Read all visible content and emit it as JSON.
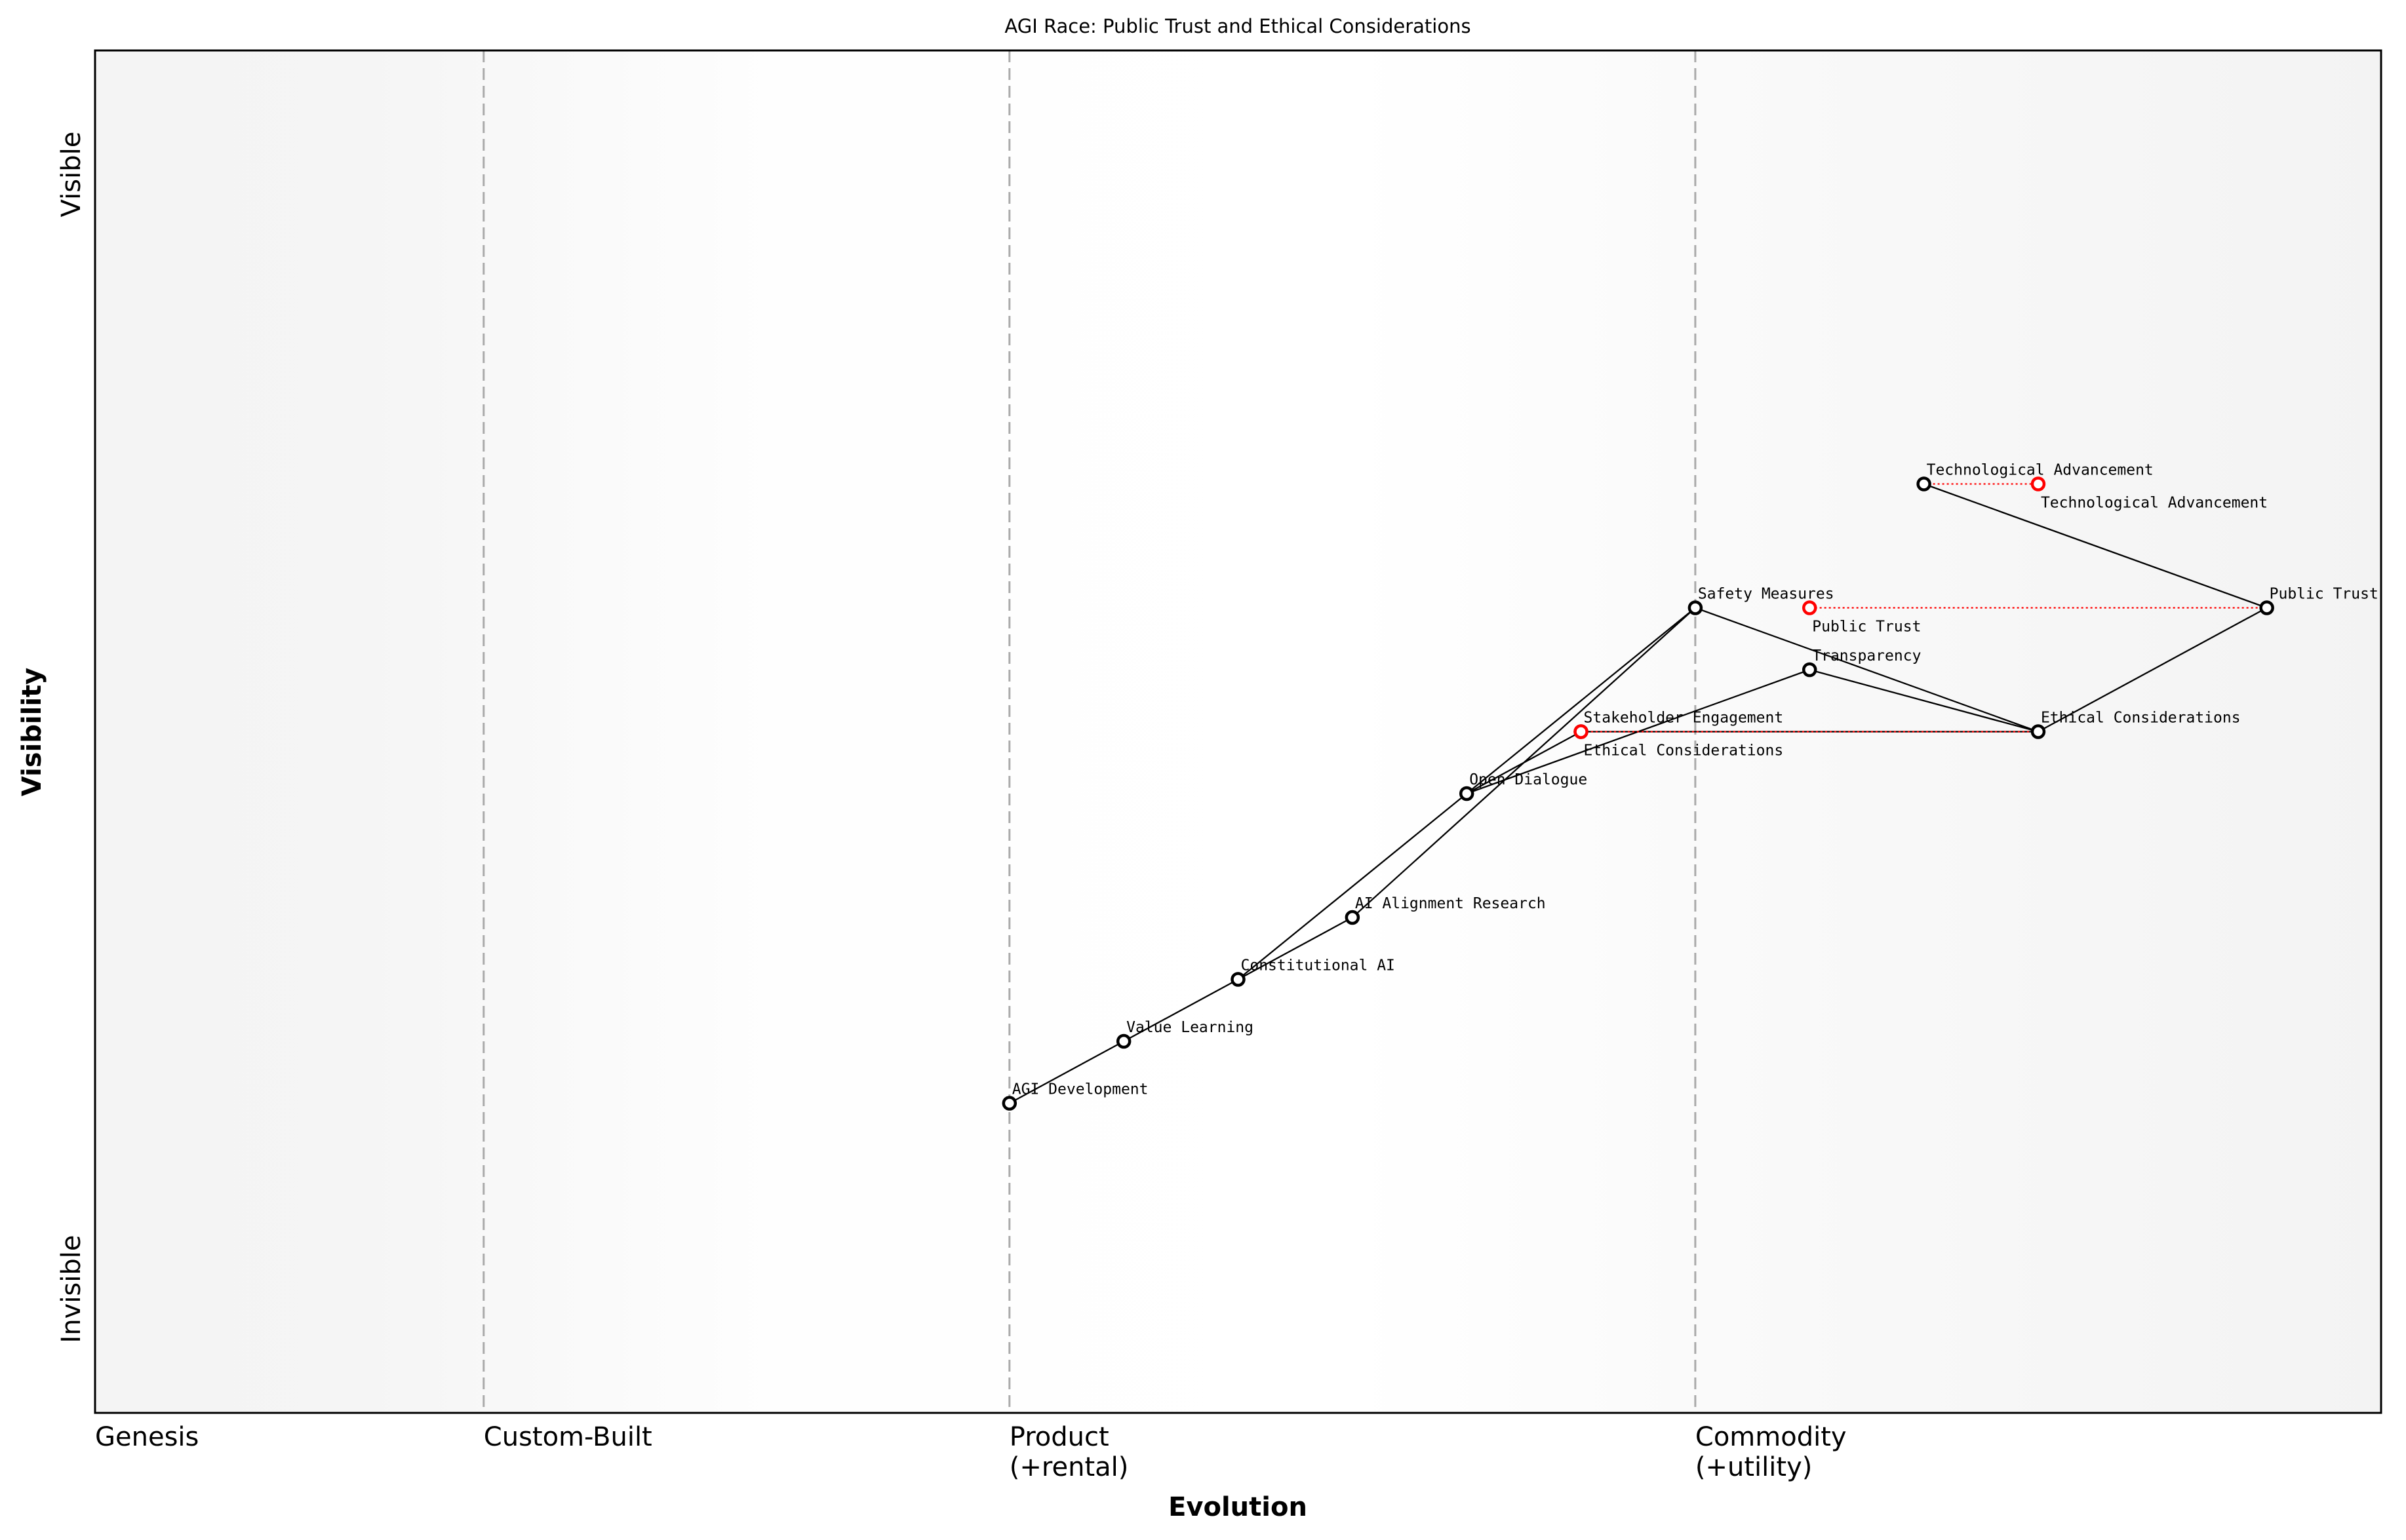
{
  "chart_data": {
    "type": "scatter",
    "subtype": "wardley-map",
    "title": "AGI Race: Public Trust and Ethical Considerations",
    "xlabel": "Evolution",
    "ylabel": "Visibility",
    "xlim": [
      0,
      1
    ],
    "ylim": [
      -0.05,
      1.05
    ],
    "grid": false,
    "x_stages": [
      {
        "label": "Genesis",
        "x": 0.0,
        "line": false
      },
      {
        "label": "Custom-Built",
        "x": 0.17,
        "line": true
      },
      {
        "label": "Product\n(+rental)",
        "x": 0.4,
        "line": true
      },
      {
        "label": "Commodity\n(+utility)",
        "x": 0.7,
        "line": true
      }
    ],
    "y_ticks": [
      {
        "label": "Invisible",
        "y": 0.05
      },
      {
        "label": "Visible",
        "y": 0.95
      }
    ],
    "components": [
      {
        "name": "AGI Development",
        "x": 0.4,
        "y": 0.2
      },
      {
        "name": "Value Learning",
        "x": 0.45,
        "y": 0.25
      },
      {
        "name": "Constitutional AI",
        "x": 0.5,
        "y": 0.3
      },
      {
        "name": "AI Alignment Research",
        "x": 0.55,
        "y": 0.35
      },
      {
        "name": "Open Dialogue",
        "x": 0.6,
        "y": 0.45
      },
      {
        "name": "Stakeholder Engagement",
        "x": 0.65,
        "y": 0.5
      },
      {
        "name": "Safety Measures",
        "x": 0.7,
        "y": 0.6
      },
      {
        "name": "Transparency",
        "x": 0.75,
        "y": 0.55
      },
      {
        "name": "Technological Advancement",
        "x": 0.8,
        "y": 0.7
      },
      {
        "name": "Ethical Considerations",
        "x": 0.85,
        "y": 0.5
      },
      {
        "name": "Public Trust",
        "x": 0.95,
        "y": 0.6
      }
    ],
    "links": [
      [
        "AGI Development",
        "Value Learning"
      ],
      [
        "Value Learning",
        "Constitutional AI"
      ],
      [
        "Constitutional AI",
        "AI Alignment Research"
      ],
      [
        "Constitutional AI",
        "Open Dialogue"
      ],
      [
        "Open Dialogue",
        "Safety Measures"
      ],
      [
        "AI Alignment Research",
        "Safety Measures"
      ],
      [
        "Open Dialogue",
        "Stakeholder Engagement"
      ],
      [
        "Open Dialogue",
        "Transparency"
      ],
      [
        "Stakeholder Engagement",
        "Ethical Considerations"
      ],
      [
        "Safety Measures",
        "Ethical Considerations"
      ],
      [
        "Transparency",
        "Ethical Considerations"
      ],
      [
        "Ethical Considerations",
        "Public Trust"
      ],
      [
        "Public Trust",
        "Technological Advancement"
      ]
    ],
    "evolutions": [
      {
        "name": "Ethical Considerations",
        "from": 0.85,
        "to": 0.65,
        "y": 0.5
      },
      {
        "name": "Public Trust",
        "from": 0.95,
        "to": 0.75,
        "y": 0.6
      },
      {
        "name": "Technological Advancement",
        "from": 0.8,
        "to": 0.85,
        "y": 0.7
      }
    ],
    "colors": {
      "component": "#000000",
      "evolution": "#ff0000",
      "stage_line": "#aaaaaa",
      "band_edge": "#f4f4f4",
      "band_mid": "#ffffff"
    }
  }
}
